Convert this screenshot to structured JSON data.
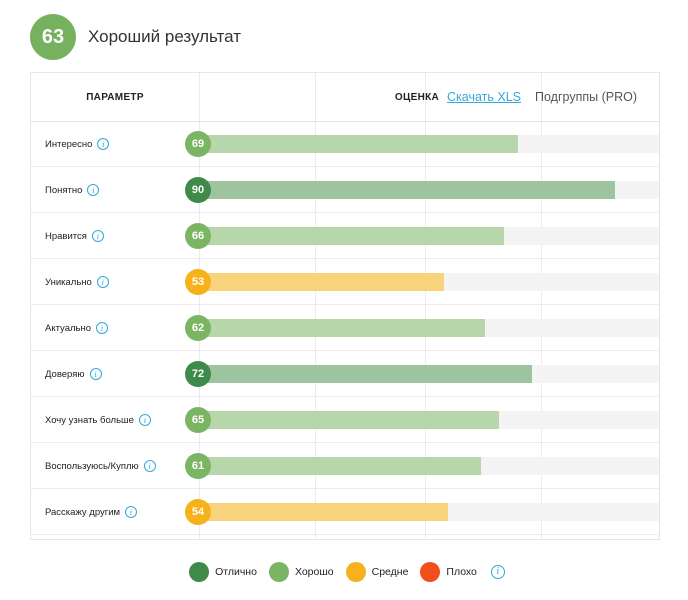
{
  "header": {
    "score": "63",
    "title": "Хороший результат",
    "score_color": "#76b15f"
  },
  "table": {
    "param_header": "ПАРАМЕТР",
    "rating_header": "ОЦЕНКА",
    "xls_link": "Скачать XLS",
    "subgroups_link": "Подгруппы (PRO)",
    "info_glyph": "i"
  },
  "rows": [
    {
      "label": "Интересно",
      "value": 69,
      "value_text": "69",
      "level": "good"
    },
    {
      "label": "Понятно",
      "value": 90,
      "value_text": "90",
      "level": "excellent"
    },
    {
      "label": "Нравится",
      "value": 66,
      "value_text": "66",
      "level": "good"
    },
    {
      "label": "Уникально",
      "value": 53,
      "value_text": "53",
      "level": "average"
    },
    {
      "label": "Актуально",
      "value": 62,
      "value_text": "62",
      "level": "good"
    },
    {
      "label": "Доверяю",
      "value": 72,
      "value_text": "72",
      "level": "excellent"
    },
    {
      "label": "Хочу узнать больше",
      "value": 65,
      "value_text": "65",
      "level": "good"
    },
    {
      "label": "Воспользуюсь/Куплю",
      "value": 61,
      "value_text": "61",
      "level": "good"
    },
    {
      "label": "Расскажу другим",
      "value": 54,
      "value_text": "54",
      "level": "average"
    }
  ],
  "levels": {
    "excellent": {
      "badge": "#3f8a4a",
      "bar": "#9dc49f"
    },
    "good": {
      "badge": "#7bb564",
      "bar": "#b7d6a9"
    },
    "average": {
      "badge": "#f5b21b",
      "bar": "#f9d27c"
    },
    "bad": {
      "badge": "#f04e1c",
      "bar": "#f8a88c"
    }
  },
  "legend": [
    {
      "label": "Отлично",
      "color": "#3f8a4a"
    },
    {
      "label": "Хорошо",
      "color": "#7bb564"
    },
    {
      "label": "Средне",
      "color": "#f5b21b"
    },
    {
      "label": "Плохо",
      "color": "#f04e1c"
    }
  ]
}
